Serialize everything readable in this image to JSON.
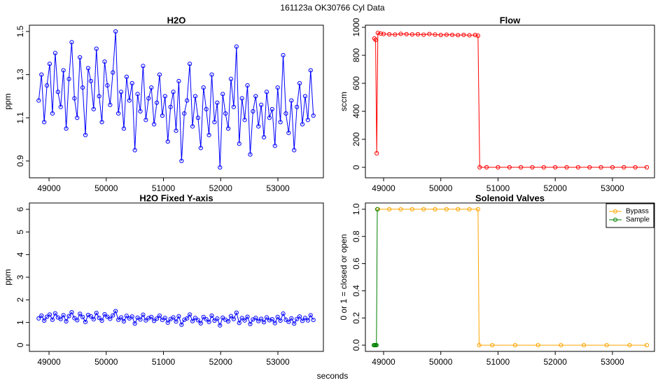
{
  "title": "161123a    OK30766    Cyl Data",
  "xlabel": "seconds",
  "chart_data": [
    {
      "type": "line",
      "title": "H2O",
      "ylabel": "ppm",
      "x": [
        48820,
        48868,
        48916,
        48964,
        49012,
        49060,
        49108,
        49156,
        49204,
        49252,
        49300,
        49348,
        49396,
        49444,
        49492,
        49540,
        49588,
        49636,
        49684,
        49732,
        49780,
        49828,
        49876,
        49924,
        49972,
        50020,
        50068,
        50116,
        50164,
        50212,
        50260,
        50308,
        50356,
        50404,
        50452,
        50500,
        50548,
        50596,
        50644,
        50692,
        50740,
        50788,
        50836,
        50884,
        50932,
        50980,
        51028,
        51076,
        51124,
        51172,
        51220,
        51268,
        51316,
        51364,
        51412,
        51460,
        51508,
        51556,
        51604,
        51652,
        51700,
        51748,
        51796,
        51844,
        51892,
        51940,
        51988,
        52036,
        52084,
        52132,
        52180,
        52228,
        52276,
        52324,
        52372,
        52420,
        52468,
        52516,
        52564,
        52612,
        52660,
        52708,
        52756,
        52804,
        52852,
        52900,
        52948,
        52996,
        53044,
        53092,
        53140,
        53188,
        53236,
        53284,
        53332,
        53380,
        53428,
        53476,
        53524,
        53572,
        53620
      ],
      "series": [
        {
          "name": "H2O",
          "color": "#0000ff",
          "values": [
            1.18,
            1.3,
            1.08,
            1.25,
            1.35,
            1.12,
            1.4,
            1.22,
            1.15,
            1.32,
            1.05,
            1.28,
            1.45,
            1.19,
            1.1,
            1.38,
            1.24,
            1.02,
            1.33,
            1.27,
            1.14,
            1.42,
            1.2,
            1.08,
            1.36,
            1.25,
            1.16,
            1.31,
            1.5,
            1.12,
            1.22,
            1.05,
            1.29,
            1.18,
            1.26,
            0.95,
            1.21,
            1.13,
            1.34,
            1.09,
            1.19,
            1.24,
            1.07,
            1.17,
            1.3,
            1.11,
            1.2,
            0.99,
            1.15,
            1.22,
            1.04,
            1.27,
            0.9,
            1.12,
            1.18,
            1.35,
            1.06,
            1.2,
            1.1,
            0.96,
            1.24,
            1.14,
            1.02,
            1.3,
            1.08,
            1.17,
            0.87,
            1.21,
            1.12,
            1.05,
            1.28,
            1.15,
            1.43,
            0.98,
            1.19,
            1.09,
            1.25,
            0.93,
            1.13,
            1.2,
            1.06,
            1.16,
            1.01,
            1.22,
            1.1,
            1.14,
            0.97,
            1.24,
            1.08,
            1.39,
            1.12,
            1.03,
            1.18,
            0.95,
            1.15,
            1.26,
            1.07,
            1.2,
            1.09,
            1.32,
            1.11
          ]
        }
      ],
      "xlim": [
        48657,
        53795
      ],
      "xticks": [
        49000,
        50000,
        51000,
        52000,
        53000
      ],
      "ylim": [
        0.822,
        1.529
      ],
      "yticks": [
        0.9,
        1.1,
        1.3,
        1.5
      ]
    },
    {
      "type": "line",
      "title": "Flow",
      "ylabel": "sccm",
      "x": [
        48840,
        48860,
        48880,
        48900,
        48950,
        49000,
        49100,
        49200,
        49300,
        49400,
        49500,
        49600,
        49700,
        49800,
        49900,
        50000,
        50100,
        50200,
        50300,
        50400,
        50500,
        50600,
        50650,
        50680,
        50800,
        51000,
        51200,
        51400,
        51600,
        51800,
        52000,
        52200,
        52400,
        52600,
        52800,
        53000,
        53200,
        53400,
        53600
      ],
      "series": [
        {
          "name": "Flow",
          "color": "#ff0000",
          "values": [
            920,
            910,
            100,
            960,
            955,
            952,
            950,
            948,
            953,
            951,
            949,
            950,
            947,
            952,
            948,
            945,
            947,
            946,
            944,
            946,
            943,
            945,
            940,
            0,
            0,
            0,
            0,
            0,
            0,
            0,
            0,
            0,
            0,
            0,
            0,
            0,
            0,
            0,
            0
          ]
        }
      ],
      "xlim": [
        48682,
        53735
      ],
      "xticks": [
        49000,
        50000,
        51000,
        52000,
        53000
      ],
      "ylim": [
        -75,
        1015
      ],
      "yticks": [
        0,
        200,
        400,
        600,
        800,
        1000
      ]
    },
    {
      "type": "line",
      "title": "H2O Fixed Y-axis",
      "ylabel": "ppm",
      "x": [
        48820,
        48868,
        48916,
        48964,
        49012,
        49060,
        49108,
        49156,
        49204,
        49252,
        49300,
        49348,
        49396,
        49444,
        49492,
        49540,
        49588,
        49636,
        49684,
        49732,
        49780,
        49828,
        49876,
        49924,
        49972,
        50020,
        50068,
        50116,
        50164,
        50212,
        50260,
        50308,
        50356,
        50404,
        50452,
        50500,
        50548,
        50596,
        50644,
        50692,
        50740,
        50788,
        50836,
        50884,
        50932,
        50980,
        51028,
        51076,
        51124,
        51172,
        51220,
        51268,
        51316,
        51364,
        51412,
        51460,
        51508,
        51556,
        51604,
        51652,
        51700,
        51748,
        51796,
        51844,
        51892,
        51940,
        51988,
        52036,
        52084,
        52132,
        52180,
        52228,
        52276,
        52324,
        52372,
        52420,
        52468,
        52516,
        52564,
        52612,
        52660,
        52708,
        52756,
        52804,
        52852,
        52900,
        52948,
        52996,
        53044,
        53092,
        53140,
        53188,
        53236,
        53284,
        53332,
        53380,
        53428,
        53476,
        53524,
        53572,
        53620
      ],
      "series": [
        {
          "name": "H2O",
          "color": "#0000ff",
          "values": [
            1.18,
            1.3,
            1.08,
            1.25,
            1.35,
            1.12,
            1.4,
            1.22,
            1.15,
            1.32,
            1.05,
            1.28,
            1.45,
            1.19,
            1.1,
            1.38,
            1.24,
            1.02,
            1.33,
            1.27,
            1.14,
            1.42,
            1.2,
            1.08,
            1.36,
            1.25,
            1.16,
            1.31,
            1.5,
            1.12,
            1.22,
            1.05,
            1.29,
            1.18,
            1.26,
            0.95,
            1.21,
            1.13,
            1.34,
            1.09,
            1.19,
            1.24,
            1.07,
            1.17,
            1.3,
            1.11,
            1.2,
            0.99,
            1.15,
            1.22,
            1.04,
            1.27,
            0.9,
            1.12,
            1.18,
            1.35,
            1.06,
            1.2,
            1.1,
            0.96,
            1.24,
            1.14,
            1.02,
            1.3,
            1.08,
            1.17,
            0.87,
            1.21,
            1.12,
            1.05,
            1.28,
            1.15,
            1.43,
            0.98,
            1.19,
            1.09,
            1.25,
            0.93,
            1.13,
            1.2,
            1.06,
            1.16,
            1.01,
            1.22,
            1.1,
            1.14,
            0.97,
            1.24,
            1.08,
            1.39,
            1.12,
            1.03,
            1.18,
            0.95,
            1.15,
            1.26,
            1.07,
            1.2,
            1.09,
            1.32,
            1.11
          ]
        }
      ],
      "xlim": [
        48657,
        53795
      ],
      "xticks": [
        49000,
        50000,
        51000,
        52000,
        53000
      ],
      "ylim": [
        -0.28,
        6.28
      ],
      "yticks": [
        0,
        1,
        2,
        3,
        4,
        5,
        6
      ]
    },
    {
      "type": "line",
      "title": "Solenoid Valves",
      "ylabel": "0 or 1 = closed or open",
      "legend": "topright",
      "series": [
        {
          "name": "Bypass",
          "color": "#ffa500",
          "x": [
            48900,
            49100,
            49300,
            49500,
            49700,
            49900,
            50100,
            50300,
            50500,
            50650,
            50670,
            50900,
            51300,
            51700,
            52100,
            52500,
            52900,
            53300,
            53600
          ],
          "values": [
            1,
            1,
            1,
            1,
            1,
            1,
            1,
            1,
            1,
            1,
            0,
            0,
            0,
            0,
            0,
            0,
            0,
            0,
            0
          ]
        },
        {
          "name": "Sample",
          "color": "#008000",
          "x": [
            48830,
            48845,
            48860,
            48875,
            48890
          ],
          "values": [
            0,
            0,
            0,
            0,
            1
          ]
        }
      ],
      "xlim": [
        48682,
        53735
      ],
      "xticks": [
        49000,
        50000,
        51000,
        52000,
        53000
      ],
      "ylim": [
        -0.046,
        1.046
      ],
      "yticks": [
        {
          "value": 0,
          "label": "0.0"
        },
        0.2,
        0.4,
        0.6,
        0.8,
        {
          "value": 1,
          "label": "1.0"
        }
      ]
    }
  ]
}
